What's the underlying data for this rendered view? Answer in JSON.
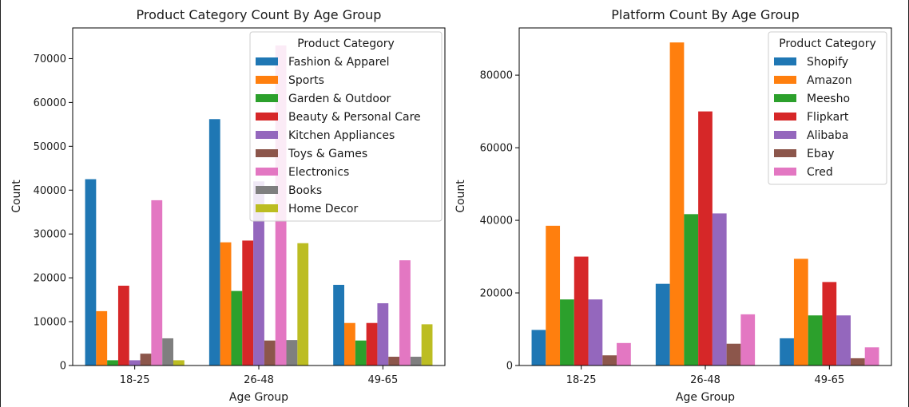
{
  "chart_data": [
    {
      "type": "bar",
      "title": "Product Category Count By Age Group",
      "xlabel": "Age Group",
      "ylabel": "Count",
      "categories": [
        "18-25",
        "26-48",
        "49-65"
      ],
      "ylim": [
        0,
        77000
      ],
      "yticks": [
        0,
        10000,
        20000,
        30000,
        40000,
        50000,
        60000,
        70000
      ],
      "grid": false,
      "legend": {
        "title": "Product Category",
        "placement": "top-right"
      },
      "series": [
        {
          "name": "Fashion & Apparel",
          "color": "#1f77b4",
          "values": [
            42500,
            56200,
            18400
          ]
        },
        {
          "name": "Sports",
          "color": "#ff7f0e",
          "values": [
            12400,
            28100,
            9700
          ]
        },
        {
          "name": "Garden & Outdoor",
          "color": "#2ca02c",
          "values": [
            1200,
            17000,
            5700
          ]
        },
        {
          "name": "Beauty & Personal Care",
          "color": "#d62728",
          "values": [
            18200,
            28500,
            9700
          ]
        },
        {
          "name": "Kitchen Appliances",
          "color": "#9467bd",
          "values": [
            1200,
            42000,
            14200
          ]
        },
        {
          "name": "Toys & Games",
          "color": "#8c564b",
          "values": [
            2700,
            5700,
            2000
          ]
        },
        {
          "name": "Electronics",
          "color": "#e377c2",
          "values": [
            37700,
            73000,
            24000
          ]
        },
        {
          "name": "Books",
          "color": "#7f7f7f",
          "values": [
            6200,
            5800,
            2000
          ]
        },
        {
          "name": "Home Decor",
          "color": "#bcbd22",
          "values": [
            1200,
            27900,
            9400
          ]
        }
      ]
    },
    {
      "type": "bar",
      "title": "Platform Count By Age Group",
      "xlabel": "Age Group",
      "ylabel": "Count",
      "categories": [
        "18-25",
        "26-48",
        "49-65"
      ],
      "ylim": [
        0,
        93000
      ],
      "yticks": [
        0,
        20000,
        40000,
        60000,
        80000
      ],
      "grid": false,
      "legend": {
        "title": "Product Category",
        "placement": "top-right"
      },
      "series": [
        {
          "name": "Shopify",
          "color": "#1f77b4",
          "values": [
            9800,
            22500,
            7500
          ]
        },
        {
          "name": "Amazon",
          "color": "#ff7f0e",
          "values": [
            38500,
            89000,
            29400
          ]
        },
        {
          "name": "Meesho",
          "color": "#2ca02c",
          "values": [
            18200,
            41700,
            13800
          ]
        },
        {
          "name": "Flipkart",
          "color": "#d62728",
          "values": [
            30000,
            70000,
            23000
          ]
        },
        {
          "name": "Alibaba",
          "color": "#9467bd",
          "values": [
            18200,
            41900,
            13800
          ]
        },
        {
          "name": "Ebay",
          "color": "#8c564b",
          "values": [
            2800,
            6000,
            2000
          ]
        },
        {
          "name": "Cred",
          "color": "#e377c2",
          "values": [
            6200,
            14100,
            5000
          ]
        }
      ]
    }
  ]
}
